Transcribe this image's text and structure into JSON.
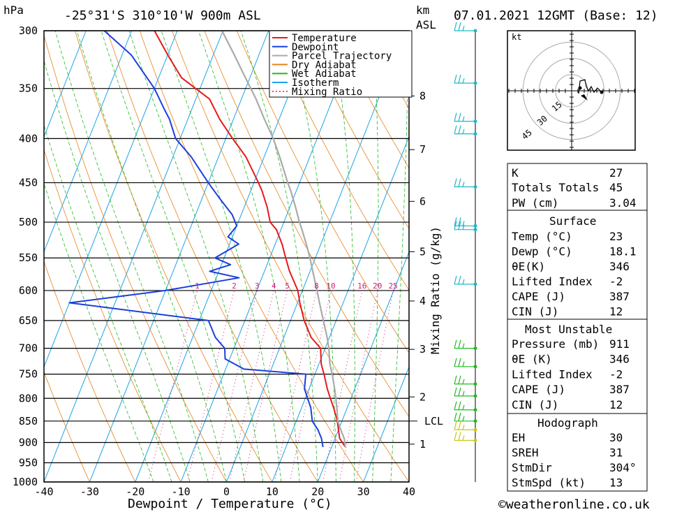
{
  "header": {
    "p_unit": "hPa",
    "location": "-25°31'S 310°10'W 900m ASL",
    "km_unit_1": "km",
    "km_unit_2": "ASL",
    "datetime": "07.01.2021 12GMT (Base: 12)"
  },
  "axes": {
    "xlabel": "Dewpoint / Temperature (°C)",
    "ylabel_right": "Mixing Ratio (g/kg)",
    "pressure_ticks": [
      300,
      350,
      400,
      450,
      500,
      550,
      600,
      650,
      700,
      750,
      800,
      850,
      900,
      950,
      1000
    ],
    "temp_ticks": [
      -40,
      -30,
      -20,
      -10,
      0,
      10,
      20,
      30,
      40
    ],
    "km_ticks": [
      {
        "km": "1",
        "p": 904
      },
      {
        "km": "2",
        "p": 797
      },
      {
        "km": "3",
        "p": 702
      },
      {
        "km": "4",
        "p": 617
      },
      {
        "km": "5",
        "p": 541
      },
      {
        "km": "6",
        "p": 473
      },
      {
        "km": "7",
        "p": 412
      },
      {
        "km": "8",
        "p": 357
      }
    ],
    "lcl": {
      "label": "LCL",
      "p": 850
    },
    "mixing_ratio_labels": [
      "1",
      "2",
      "3",
      "4",
      "5",
      "8",
      "10",
      "16",
      "20",
      "25"
    ]
  },
  "legend": [
    {
      "label": "Temperature",
      "color": "#e8181a",
      "style": "solid"
    },
    {
      "label": "Dewpoint",
      "color": "#1a3fe0",
      "style": "solid"
    },
    {
      "label": "Parcel Trajectory",
      "color": "#aaaaaa",
      "style": "solid"
    },
    {
      "label": "Dry Adiabat",
      "color": "#e8821a",
      "style": "solid"
    },
    {
      "label": "Wet Adiabat",
      "color": "#22bb22",
      "style": "solid"
    },
    {
      "label": "Isotherm",
      "color": "#1aa3e8",
      "style": "solid"
    },
    {
      "label": "Mixing Ratio",
      "color": "#d01a7a",
      "style": "dotted"
    }
  ],
  "chart_data": {
    "type": "line",
    "skewt": true,
    "series": [
      {
        "name": "Temperature",
        "color": "#e8181a",
        "points": [
          [
            23,
            911
          ],
          [
            21,
            890
          ],
          [
            20,
            870
          ],
          [
            19,
            850
          ],
          [
            17,
            820
          ],
          [
            15.5,
            800
          ],
          [
            14,
            780
          ],
          [
            12,
            750
          ],
          [
            10.5,
            730
          ],
          [
            9,
            700
          ],
          [
            6,
            680
          ],
          [
            3,
            650
          ],
          [
            0.5,
            620
          ],
          [
            -1,
            600
          ],
          [
            -4.5,
            570
          ],
          [
            -6.5,
            550
          ],
          [
            -8.5,
            530
          ],
          [
            -11,
            510
          ],
          [
            -13,
            500
          ],
          [
            -15,
            480
          ],
          [
            -17.5,
            460
          ],
          [
            -19,
            450
          ],
          [
            -24,
            420
          ],
          [
            -28.5,
            400
          ],
          [
            -33,
            380
          ],
          [
            -37,
            360
          ],
          [
            -45,
            340
          ],
          [
            -50,
            320
          ],
          [
            -55,
            300
          ]
        ]
      },
      {
        "name": "Dewpoint",
        "color": "#1a3fe0",
        "points": [
          [
            18.1,
            911
          ],
          [
            17,
            890
          ],
          [
            15.5,
            870
          ],
          [
            13.5,
            850
          ],
          [
            12,
            820
          ],
          [
            10.5,
            800
          ],
          [
            9,
            780
          ],
          [
            8,
            750
          ],
          [
            -6,
            740
          ],
          [
            -11,
            720
          ],
          [
            -12,
            700
          ],
          [
            -15,
            680
          ],
          [
            -18,
            650
          ],
          [
            -50,
            620
          ],
          [
            -40,
            610
          ],
          [
            -30,
            600
          ],
          [
            -15,
            580
          ],
          [
            -22,
            570
          ],
          [
            -18,
            560
          ],
          [
            -22,
            550
          ],
          [
            -18,
            530
          ],
          [
            -21,
            520
          ],
          [
            -20,
            505
          ],
          [
            -22,
            490
          ],
          [
            -26,
            470
          ],
          [
            -30,
            450
          ],
          [
            -36,
            420
          ],
          [
            -41,
            400
          ],
          [
            -44,
            380
          ],
          [
            -46,
            370
          ],
          [
            -50,
            350
          ],
          [
            -58,
            320
          ],
          [
            -66,
            300
          ]
        ]
      },
      {
        "name": "Parcel Trajectory",
        "color": "#aaaaaa",
        "points": [
          [
            23,
            911
          ],
          [
            22,
            890
          ],
          [
            20.5,
            870
          ],
          [
            19.1,
            850
          ],
          [
            17.7,
            820
          ],
          [
            16.7,
            800
          ],
          [
            15.6,
            780
          ],
          [
            13.8,
            750
          ],
          [
            12.4,
            730
          ],
          [
            10.8,
            700
          ],
          [
            9.5,
            680
          ],
          [
            7.2,
            650
          ],
          [
            4.8,
            620
          ],
          [
            3.2,
            600
          ],
          [
            0.6,
            570
          ],
          [
            -1.2,
            550
          ],
          [
            -3.2,
            530
          ],
          [
            -5.4,
            510
          ],
          [
            -6.6,
            500
          ],
          [
            -8.8,
            480
          ],
          [
            -11.2,
            460
          ],
          [
            -12.6,
            450
          ],
          [
            -16.6,
            420
          ],
          [
            -19.6,
            400
          ],
          [
            -23.2,
            380
          ],
          [
            -26.8,
            360
          ],
          [
            -31.0,
            340
          ],
          [
            -35.4,
            320
          ],
          [
            -40.2,
            300
          ]
        ]
      }
    ],
    "xlim": [
      -40,
      40
    ],
    "plim": [
      1000,
      300
    ],
    "skew_deg_per_decade": 75
  },
  "wind_barbs": {
    "markers": [
      {
        "p": 300,
        "color": "#1fb8c8"
      },
      {
        "p": 345,
        "color": "#1fb8c8"
      },
      {
        "p": 382,
        "color": "#1fb8c8"
      },
      {
        "p": 395,
        "color": "#1fb8c8"
      },
      {
        "p": 455,
        "color": "#1fb8c8"
      },
      {
        "p": 505,
        "color": "#1fb8c8"
      },
      {
        "p": 510,
        "color": "#1fb8c8"
      },
      {
        "p": 590,
        "color": "#1fb8c8"
      },
      {
        "p": 700,
        "color": "#22bb22"
      },
      {
        "p": 735,
        "color": "#22bb22"
      },
      {
        "p": 770,
        "color": "#22bb22"
      },
      {
        "p": 795,
        "color": "#22bb22"
      },
      {
        "p": 825,
        "color": "#22bb22"
      },
      {
        "p": 850,
        "color": "#22bb22"
      },
      {
        "p": 870,
        "color": "#c8c81a"
      },
      {
        "p": 895,
        "color": "#c8c81a"
      }
    ]
  },
  "hodograph": {
    "unit": "kt",
    "rings": [
      "15",
      "30",
      "45"
    ],
    "trace_color": "#000000"
  },
  "indices": {
    "k_label": "K",
    "k_value": "27",
    "tt_label": "Totals Totals",
    "tt_value": "45",
    "pw_label": "PW (cm)",
    "pw_value": "3.04"
  },
  "surface": {
    "title": "Surface",
    "rows": [
      {
        "label": "Temp (°C)",
        "value": "23"
      },
      {
        "label": "Dewp (°C)",
        "value": "18.1"
      },
      {
        "label": "θE(K)",
        "value": "346"
      },
      {
        "label": "Lifted Index",
        "value": "-2"
      },
      {
        "label": "CAPE (J)",
        "value": "387"
      },
      {
        "label": "CIN (J)",
        "value": "12"
      }
    ]
  },
  "most_unstable": {
    "title": "Most Unstable",
    "rows": [
      {
        "label": "Pressure (mb)",
        "value": "911"
      },
      {
        "label": "θE (K)",
        "value": "346"
      },
      {
        "label": "Lifted Index",
        "value": "-2"
      },
      {
        "label": "CAPE (J)",
        "value": "387"
      },
      {
        "label": "CIN (J)",
        "value": "12"
      }
    ]
  },
  "hodograph_table": {
    "title": "Hodograph",
    "rows": [
      {
        "label": "EH",
        "value": "30"
      },
      {
        "label": "SREH",
        "value": "31"
      },
      {
        "label": "StmDir",
        "value": "304°"
      },
      {
        "label": "StmSpd (kt)",
        "value": "13"
      }
    ]
  },
  "footer": {
    "credit": "©weatheronline.co.uk"
  }
}
